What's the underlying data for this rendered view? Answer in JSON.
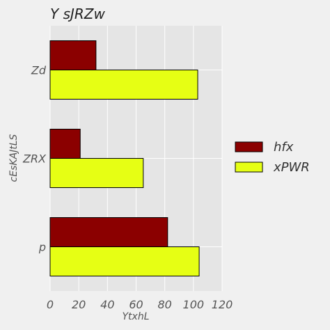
{
  "chart_data": {
    "type": "bar",
    "orientation": "horizontal",
    "title": "Y  sJRZw",
    "xlabel": "YtxhL",
    "ylabel": "cEsKAJtLS",
    "categories": [
      "Zd",
      "ZRX",
      "p"
    ],
    "series": [
      {
        "name": "hfx",
        "color": "#8b0000",
        "values": [
          32,
          21,
          82
        ]
      },
      {
        "name": "xPWR",
        "color": "#e6ff14",
        "values": [
          103,
          65,
          104
        ]
      }
    ],
    "xlim": [
      0,
      120
    ],
    "xticks": [
      0,
      20,
      40,
      60,
      80,
      100,
      120
    ],
    "grid": true,
    "legend_position": "right"
  }
}
